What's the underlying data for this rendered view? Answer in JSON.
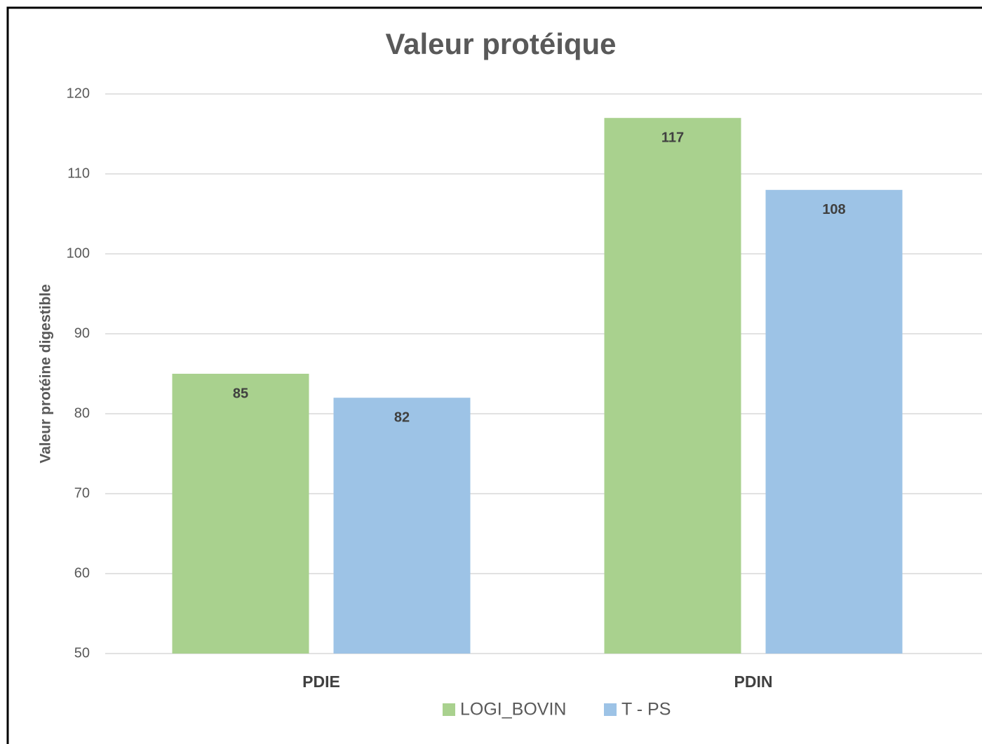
{
  "chart_data": {
    "type": "bar",
    "title": "Valeur protéique",
    "y_label": "Valeur protéine digestible",
    "categories": [
      "PDIE",
      "PDIN"
    ],
    "series": [
      {
        "name": "LOGI_BOVIN",
        "color": "#a9d18e",
        "values": [
          85,
          117
        ]
      },
      {
        "name": "T - PS",
        "color": "#9dc3e6",
        "values": [
          82,
          108
        ]
      }
    ],
    "ylim": [
      50,
      120
    ],
    "yticks": [
      50,
      60,
      70,
      80,
      90,
      100,
      110,
      120
    ],
    "grid": true,
    "legend": "bottom"
  }
}
